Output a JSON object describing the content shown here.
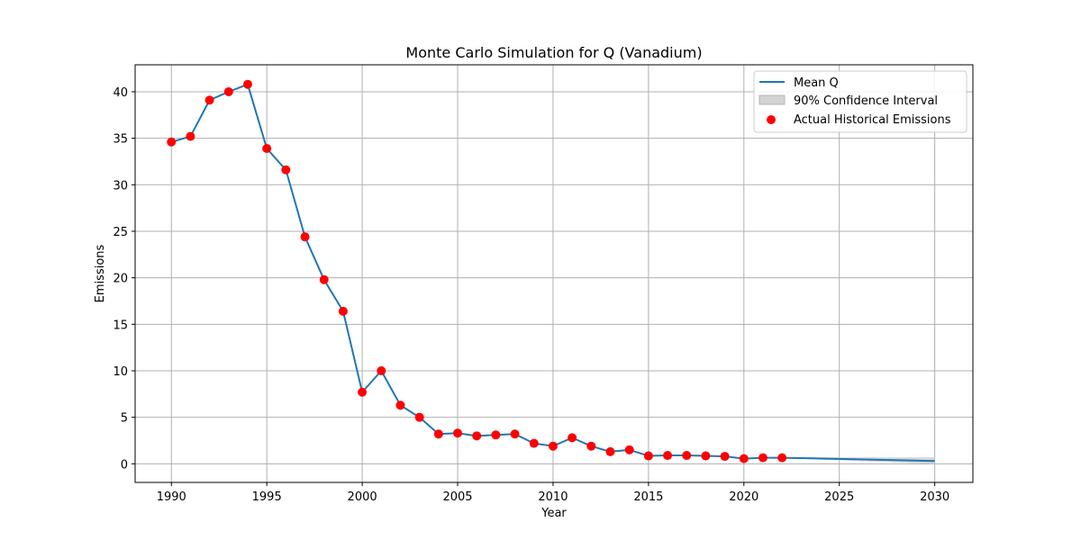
{
  "chart_data": {
    "type": "line",
    "title": "Monte Carlo Simulation for Q (Vanadium)",
    "xlabel": "Year",
    "ylabel": "Emissions",
    "xlim": [
      1988.1,
      2032.0
    ],
    "ylim": [
      -2.0,
      42.9
    ],
    "xticks": [
      1990,
      1995,
      2000,
      2005,
      2010,
      2015,
      2020,
      2025,
      2030
    ],
    "yticks": [
      0,
      5,
      10,
      15,
      20,
      25,
      30,
      35,
      40
    ],
    "grid": true,
    "legend_position": "top-right",
    "colors": {
      "mean_line": "#1f77b4",
      "confidence_fill": "#d3d3d3",
      "actual_points": "#ff0000"
    },
    "series": [
      {
        "name": "Mean Q",
        "kind": "line",
        "x": [
          1990,
          1991,
          1992,
          1993,
          1994,
          1995,
          1996,
          1997,
          1998,
          1999,
          2000,
          2001,
          2002,
          2003,
          2004,
          2005,
          2006,
          2007,
          2008,
          2009,
          2010,
          2011,
          2012,
          2013,
          2014,
          2015,
          2016,
          2017,
          2018,
          2019,
          2020,
          2021,
          2022,
          2030
        ],
        "y": [
          34.6,
          35.2,
          39.1,
          40.0,
          40.8,
          33.9,
          31.6,
          24.4,
          19.8,
          16.4,
          7.7,
          10.0,
          6.3,
          5.0,
          3.2,
          3.3,
          3.0,
          3.1,
          3.2,
          2.2,
          1.9,
          2.8,
          1.9,
          1.3,
          1.5,
          0.85,
          0.9,
          0.9,
          0.85,
          0.8,
          0.55,
          0.65,
          0.65,
          0.3
        ]
      },
      {
        "name": "90% Confidence Interval",
        "kind": "band",
        "x": [
          2022,
          2030
        ],
        "lower": [
          0.6,
          0.0
        ],
        "upper": [
          0.7,
          0.7
        ]
      },
      {
        "name": "Actual Historical Emissions",
        "kind": "scatter",
        "x": [
          1990,
          1991,
          1992,
          1993,
          1994,
          1995,
          1996,
          1997,
          1998,
          1999,
          2000,
          2001,
          2002,
          2003,
          2004,
          2005,
          2006,
          2007,
          2008,
          2009,
          2010,
          2011,
          2012,
          2013,
          2014,
          2015,
          2016,
          2017,
          2018,
          2019,
          2020,
          2021,
          2022
        ],
        "y": [
          34.6,
          35.2,
          39.1,
          40.0,
          40.8,
          33.9,
          31.6,
          24.4,
          19.8,
          16.4,
          7.7,
          10.0,
          6.3,
          5.0,
          3.2,
          3.3,
          3.0,
          3.1,
          3.2,
          2.2,
          1.9,
          2.8,
          1.9,
          1.3,
          1.5,
          0.85,
          0.9,
          0.9,
          0.85,
          0.8,
          0.55,
          0.65,
          0.65
        ]
      }
    ]
  }
}
